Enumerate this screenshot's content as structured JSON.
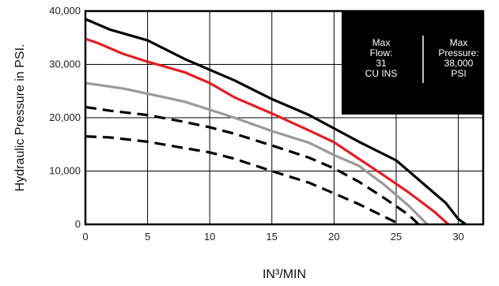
{
  "chart_data": {
    "type": "line",
    "title": "",
    "xlabel": "IN³/MIN",
    "ylabel": "Hydraulic Pressure in PSI.",
    "xlim": [
      0,
      32
    ],
    "ylim": [
      0,
      40000
    ],
    "x_ticks": [
      0,
      5,
      10,
      15,
      20,
      25,
      30
    ],
    "y_ticks": [
      0,
      10000,
      20000,
      30000,
      40000
    ],
    "y_tick_labels": [
      "0",
      "10,000",
      "20,000",
      "30,000",
      "40,000"
    ],
    "grid": true,
    "info_box": {
      "left_lines": [
        "Max",
        "Flow:",
        "31",
        "CU INS"
      ],
      "right_lines": [
        "Max",
        "Pressure:",
        "38,000",
        "PSI"
      ]
    },
    "series": [
      {
        "color": "#000000",
        "style": "solid",
        "x": [
          0,
          2,
          5,
          8,
          10,
          12,
          15,
          18,
          20,
          22,
          25,
          27,
          29,
          30,
          30.6
        ],
        "y": [
          38500,
          36500,
          34500,
          31000,
          29000,
          27000,
          23500,
          20500,
          18000,
          15500,
          12000,
          8000,
          4000,
          1000,
          0
        ]
      },
      {
        "color": "#e31e24",
        "style": "solid",
        "x": [
          0,
          1,
          3,
          5,
          8,
          10,
          12,
          15,
          18,
          20,
          22,
          24,
          26,
          28,
          29.2
        ],
        "y": [
          34800,
          34000,
          32000,
          30500,
          28500,
          26500,
          23800,
          20800,
          17600,
          15400,
          12300,
          9200,
          6000,
          2500,
          0
        ]
      },
      {
        "color": "#9a9a9a",
        "style": "solid",
        "x": [
          0,
          3,
          5,
          8,
          10,
          12,
          15,
          18,
          20,
          22,
          24,
          26,
          27.5
        ],
        "y": [
          26500,
          25500,
          24500,
          23000,
          21500,
          20000,
          17500,
          15300,
          13000,
          11000,
          7500,
          3500,
          0
        ]
      },
      {
        "color": "#000000",
        "style": "dashed",
        "x": [
          0,
          2,
          5,
          8,
          10,
          12,
          15,
          18,
          20,
          22,
          24,
          26,
          26.8
        ],
        "y": [
          22000,
          21300,
          20500,
          19200,
          18200,
          17000,
          14800,
          12500,
          10500,
          8000,
          5000,
          1800,
          0
        ]
      },
      {
        "color": "#000000",
        "style": "dashed",
        "x": [
          0,
          2,
          5,
          8,
          10,
          12,
          15,
          18,
          20,
          22,
          24,
          25.3
        ],
        "y": [
          16500,
          16300,
          15500,
          14300,
          13500,
          12300,
          10000,
          7800,
          5800,
          3800,
          1500,
          0
        ]
      }
    ]
  }
}
